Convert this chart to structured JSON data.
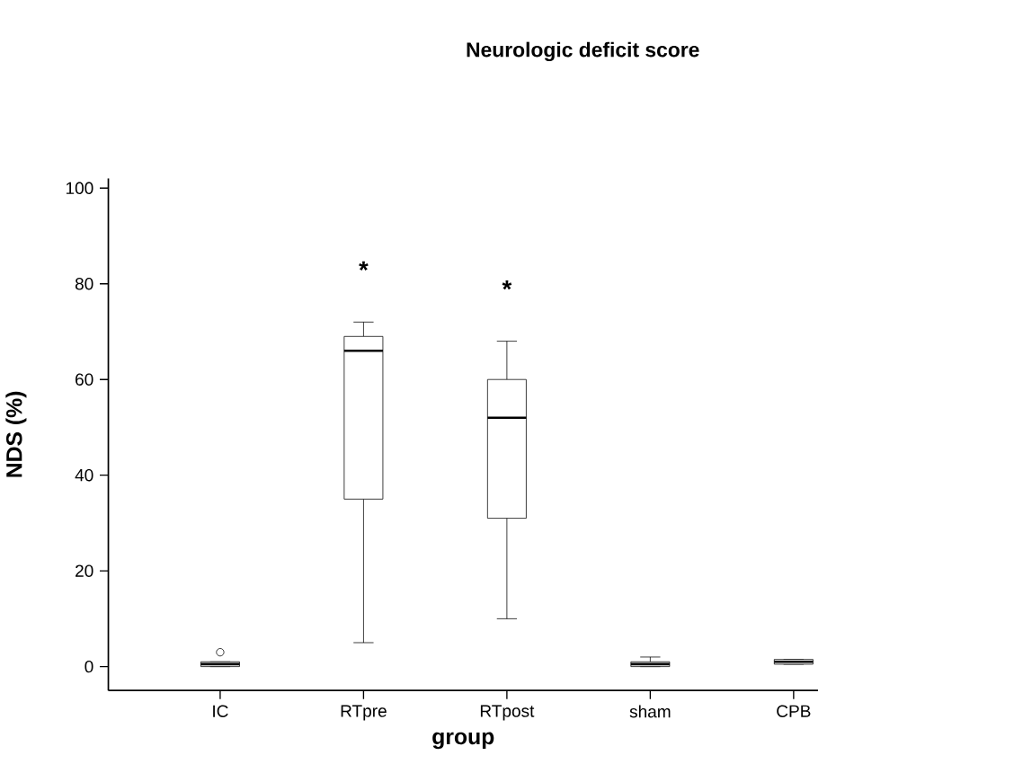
{
  "chart_data": {
    "type": "box",
    "title": "Neurologic deficit score",
    "xlabel": "group",
    "ylabel": "NDS (%)",
    "categories": [
      "IC",
      "RTpre",
      "RTpost",
      "sham",
      "CPB"
    ],
    "boxes": [
      {
        "low": 0,
        "q1": 0,
        "median": 0.5,
        "q3": 1,
        "high": 1,
        "outliers": [
          3
        ]
      },
      {
        "low": 5,
        "q1": 35,
        "median": 66,
        "q3": 69,
        "high": 72
      },
      {
        "low": 10,
        "q1": 31,
        "median": 52,
        "q3": 60,
        "high": 68
      },
      {
        "low": 0,
        "q1": 0,
        "median": 0.5,
        "q3": 1,
        "high": 2
      },
      {
        "low": 0.5,
        "q1": 0.5,
        "median": 1,
        "q3": 1.5,
        "high": 1.5
      }
    ],
    "color": "#000000",
    "ylim": [
      -5,
      102
    ],
    "yticks": [
      0,
      20,
      40,
      60,
      80,
      100
    ],
    "annotations": [
      "*",
      "*"
    ]
  }
}
